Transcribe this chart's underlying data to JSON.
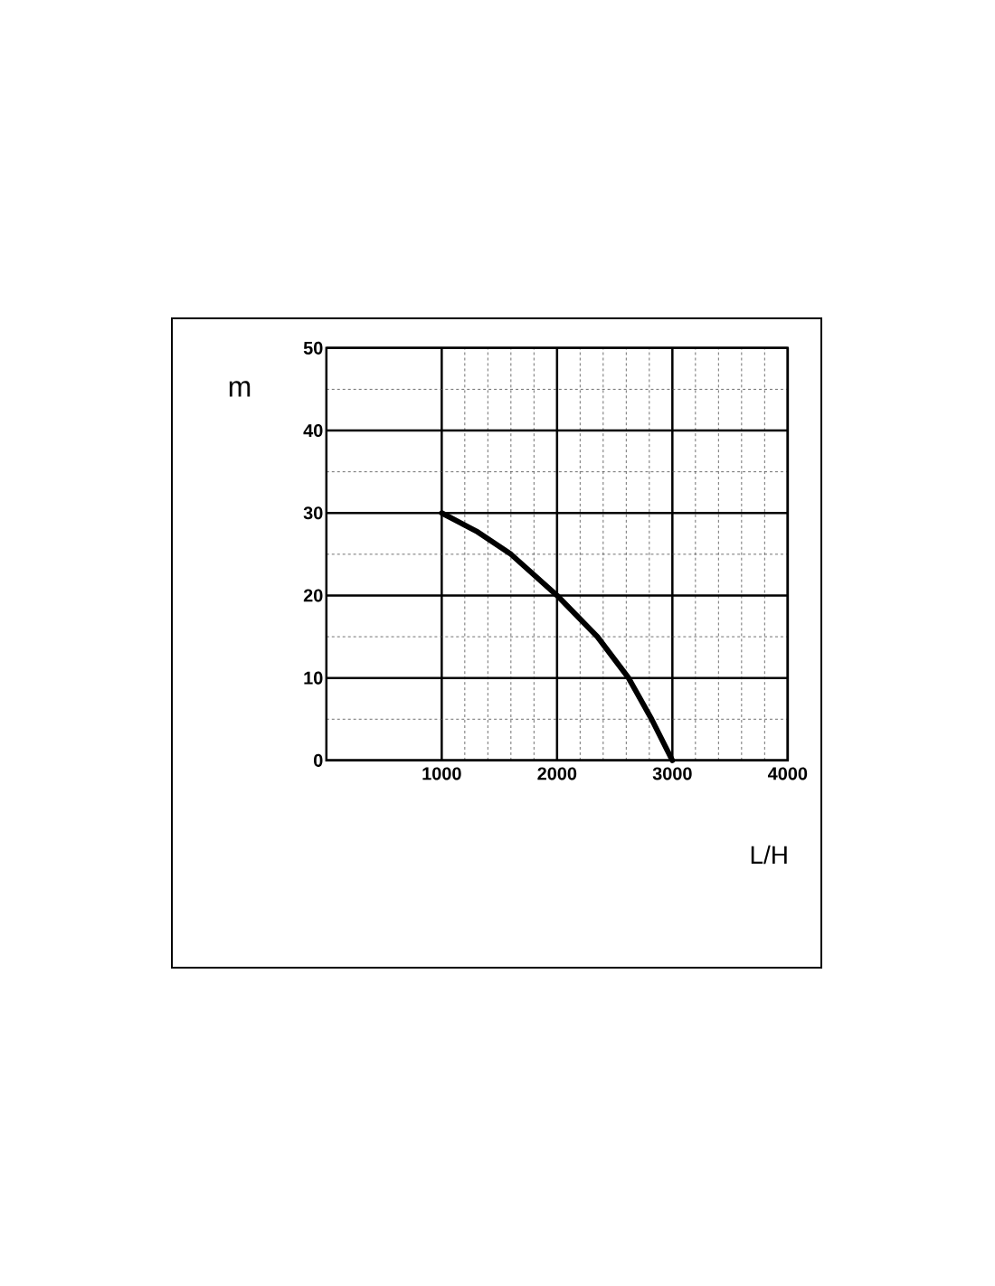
{
  "chart_data": {
    "type": "line",
    "xlabel": "L/H",
    "ylabel": "m",
    "x": [
      1000,
      1300,
      1600,
      2000,
      2350,
      2620,
      2820,
      3000
    ],
    "series": [
      {
        "color": "#000000",
        "values": [
          30,
          27.8,
          25,
          20,
          15,
          10,
          5,
          0
        ]
      }
    ],
    "xlim": [
      0,
      4000
    ],
    "ylim": [
      0,
      50
    ],
    "xticks": [
      1000,
      2000,
      3000,
      4000
    ],
    "yticks": [
      0,
      10,
      20,
      30,
      40,
      50
    ],
    "grid": true
  }
}
